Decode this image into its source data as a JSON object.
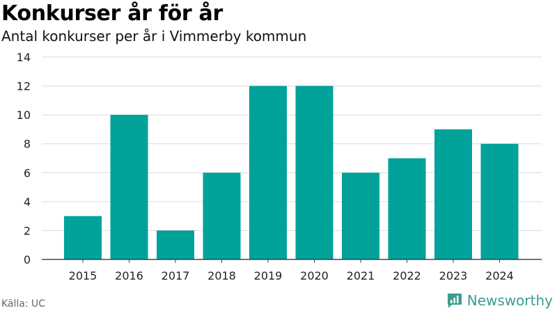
{
  "header": {
    "title": "Konkurser år för år",
    "subtitle": "Antal konkurser per år i Vimmerby kommun"
  },
  "footer": {
    "source": "Källa: UC",
    "brand": "Newsworthy"
  },
  "colors": {
    "bar": "#00a29a",
    "grid": "#d9d9d9",
    "axis": "#444444",
    "brand": "#3a9d92"
  },
  "chart_data": {
    "type": "bar",
    "categories": [
      "2015",
      "2016",
      "2017",
      "2018",
      "2019",
      "2020",
      "2021",
      "2022",
      "2023",
      "2024"
    ],
    "values": [
      3,
      10,
      2,
      6,
      12,
      12,
      6,
      7,
      9,
      8
    ],
    "title": "Konkurser år för år",
    "subtitle": "Antal konkurser per år i Vimmerby kommun",
    "xlabel": "",
    "ylabel": "",
    "ylim": [
      0,
      14
    ],
    "yticks": [
      0,
      2,
      4,
      6,
      8,
      10,
      12,
      14
    ],
    "grid": true,
    "legend": "none"
  }
}
